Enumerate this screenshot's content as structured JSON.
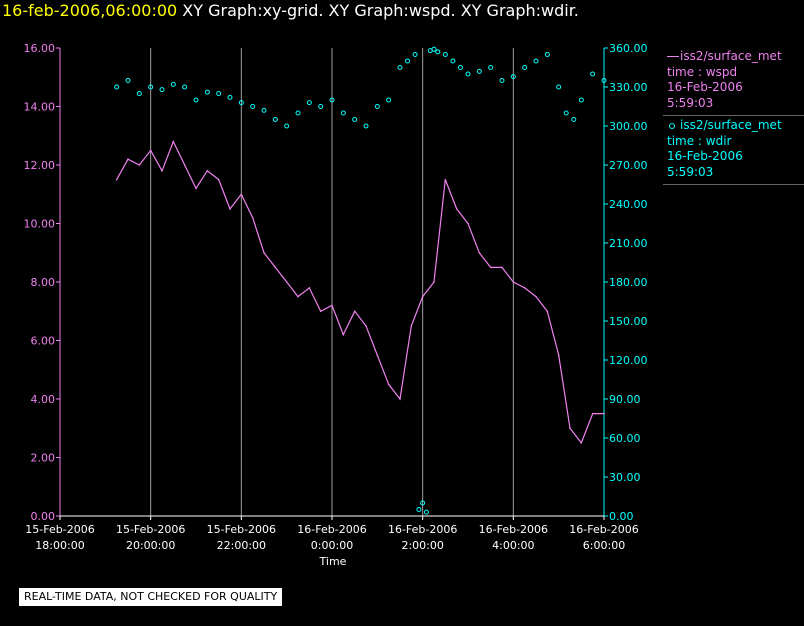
{
  "header": {
    "timestamp": "16-feb-2006,06:00:00",
    "graph_titles": "XY Graph:xy-grid.  XY Graph:wspd.  XY Graph:wdir."
  },
  "colors": {
    "wspd": "#ee82ee",
    "wdir": "#00ffff",
    "grid": "#a0a0a0",
    "axis_text": "#ffffff"
  },
  "legend": [
    {
      "name": "iss2/surface_met",
      "var": "time : wspd",
      "date": "16-Feb-2006",
      "time": "5:59:03"
    },
    {
      "name": "iss2/surface_met",
      "var": "time : wdir",
      "date": "16-Feb-2006",
      "time": "5:59:03"
    }
  ],
  "footer": {
    "quality_note": "REAL-TIME DATA, NOT CHECKED FOR QUALITY"
  },
  "chart_data": {
    "type": "line",
    "xlabel": "Time",
    "x_range": [
      "2006-02-15T18:00:00",
      "2006-02-16T06:00:00"
    ],
    "x_ticks": [
      {
        "date": "15-Feb-2006",
        "time": "18:00:00"
      },
      {
        "date": "15-Feb-2006",
        "time": "20:00:00"
      },
      {
        "date": "15-Feb-2006",
        "time": "22:00:00"
      },
      {
        "date": "16-Feb-2006",
        "time": "0:00:00"
      },
      {
        "date": "16-Feb-2006",
        "time": "2:00:00"
      },
      {
        "date": "16-Feb-2006",
        "time": "4:00:00"
      },
      {
        "date": "16-Feb-2006",
        "time": "6:00:00"
      }
    ],
    "grid": "vertical lines at each 2-hour tick",
    "y_left": {
      "ylim": [
        0,
        16
      ],
      "ticks": [
        "0.00",
        "2.00",
        "4.00",
        "6.00",
        "8.00",
        "10.00",
        "12.00",
        "14.00",
        "16.00"
      ]
    },
    "y_right": {
      "ylim": [
        0,
        360
      ],
      "ticks": [
        "0.00",
        "30.00",
        "60.00",
        "90.00",
        "120.00",
        "150.00",
        "180.00",
        "210.00",
        "240.00",
        "270.00",
        "300.00",
        "330.00",
        "360.00"
      ]
    },
    "series": [
      {
        "name": "wspd",
        "axis": "left",
        "style": "line",
        "x": [
          "2006-02-15T19:15:00",
          "2006-02-15T19:30:00",
          "2006-02-15T19:45:00",
          "2006-02-15T20:00:00",
          "2006-02-15T20:15:00",
          "2006-02-15T20:30:00",
          "2006-02-15T20:45:00",
          "2006-02-15T21:00:00",
          "2006-02-15T21:15:00",
          "2006-02-15T21:30:00",
          "2006-02-15T21:45:00",
          "2006-02-15T22:00:00",
          "2006-02-15T22:15:00",
          "2006-02-15T22:30:00",
          "2006-02-15T22:45:00",
          "2006-02-15T23:00:00",
          "2006-02-15T23:15:00",
          "2006-02-15T23:30:00",
          "2006-02-15T23:45:00",
          "2006-02-16T00:00:00",
          "2006-02-16T00:15:00",
          "2006-02-16T00:30:00",
          "2006-02-16T00:45:00",
          "2006-02-16T01:00:00",
          "2006-02-16T01:15:00",
          "2006-02-16T01:30:00",
          "2006-02-16T01:45:00",
          "2006-02-16T02:00:00",
          "2006-02-16T02:15:00",
          "2006-02-16T02:30:00",
          "2006-02-16T02:45:00",
          "2006-02-16T03:00:00",
          "2006-02-16T03:15:00",
          "2006-02-16T03:30:00",
          "2006-02-16T03:45:00",
          "2006-02-16T04:00:00",
          "2006-02-16T04:15:00",
          "2006-02-16T04:30:00",
          "2006-02-16T04:45:00",
          "2006-02-16T05:00:00",
          "2006-02-16T05:15:00",
          "2006-02-16T05:30:00",
          "2006-02-16T05:45:00",
          "2006-02-16T06:00:00"
        ],
        "values": [
          11.5,
          12.2,
          12.0,
          12.5,
          11.8,
          12.8,
          12.0,
          11.2,
          11.8,
          11.5,
          10.5,
          11.0,
          10.2,
          9.0,
          8.5,
          8.0,
          7.5,
          7.8,
          7.0,
          7.2,
          6.2,
          7.0,
          6.5,
          5.5,
          4.5,
          4.0,
          6.5,
          7.5,
          8.0,
          11.5,
          10.5,
          10.0,
          9.0,
          8.5,
          8.5,
          8.0,
          7.8,
          7.5,
          7.0,
          5.5,
          3.0,
          2.5,
          3.5,
          3.5
        ]
      },
      {
        "name": "wdir",
        "axis": "right",
        "style": "scatter",
        "x": [
          "2006-02-15T19:15:00",
          "2006-02-15T19:30:00",
          "2006-02-15T19:45:00",
          "2006-02-15T20:00:00",
          "2006-02-15T20:15:00",
          "2006-02-15T20:30:00",
          "2006-02-15T20:45:00",
          "2006-02-15T21:00:00",
          "2006-02-15T21:15:00",
          "2006-02-15T21:30:00",
          "2006-02-15T21:45:00",
          "2006-02-15T22:00:00",
          "2006-02-15T22:15:00",
          "2006-02-15T22:30:00",
          "2006-02-15T22:45:00",
          "2006-02-15T23:00:00",
          "2006-02-15T23:15:00",
          "2006-02-15T23:30:00",
          "2006-02-15T23:45:00",
          "2006-02-16T00:00:00",
          "2006-02-16T00:15:00",
          "2006-02-16T00:30:00",
          "2006-02-16T00:45:00",
          "2006-02-16T01:00:00",
          "2006-02-16T01:15:00",
          "2006-02-16T01:30:00",
          "2006-02-16T01:40:00",
          "2006-02-16T01:50:00",
          "2006-02-16T01:55:00",
          "2006-02-16T02:00:00",
          "2006-02-16T02:05:00",
          "2006-02-16T02:10:00",
          "2006-02-16T02:15:00",
          "2006-02-16T02:20:00",
          "2006-02-16T02:30:00",
          "2006-02-16T02:40:00",
          "2006-02-16T02:50:00",
          "2006-02-16T03:00:00",
          "2006-02-16T03:15:00",
          "2006-02-16T03:30:00",
          "2006-02-16T03:45:00",
          "2006-02-16T04:00:00",
          "2006-02-16T04:15:00",
          "2006-02-16T04:30:00",
          "2006-02-16T04:45:00",
          "2006-02-16T05:00:00",
          "2006-02-16T05:10:00",
          "2006-02-16T05:20:00",
          "2006-02-16T05:30:00",
          "2006-02-16T05:45:00",
          "2006-02-16T06:00:00"
        ],
        "values": [
          330,
          335,
          325,
          330,
          328,
          332,
          330,
          320,
          326,
          325,
          322,
          318,
          315,
          312,
          305,
          300,
          310,
          318,
          315,
          320,
          310,
          305,
          300,
          315,
          320,
          345,
          350,
          355,
          5,
          10,
          3,
          358,
          359,
          357,
          355,
          350,
          345,
          340,
          342,
          345,
          335,
          338,
          345,
          350,
          355,
          330,
          310,
          305,
          320,
          340,
          335
        ]
      }
    ]
  }
}
